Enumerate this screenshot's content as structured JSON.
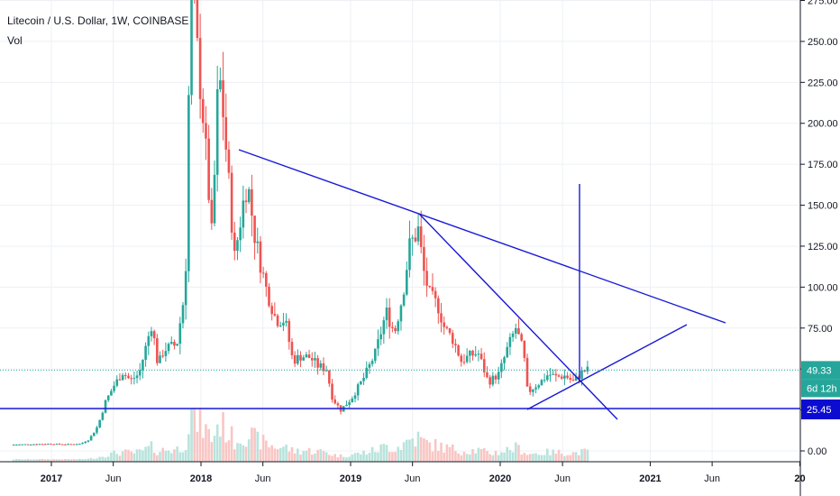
{
  "legend": {
    "symbol": "Litecoin / U.S. Dollar, 1W, COINBASE",
    "volume": "Vol"
  },
  "colors": {
    "up": "#26a69a",
    "down": "#ef5350",
    "vol_up": "#b9e3dc",
    "vol_down": "#f8c6c4",
    "trend": "#1919d6",
    "price_tag": "#26a69a",
    "support_tag": "#0c0cd0",
    "grid": "#eef0f4",
    "axis_text": "#131722"
  },
  "tags": {
    "last_price": "49.33",
    "countdown": "6d 12h",
    "support": "25.45"
  },
  "chart_data": {
    "type": "candlestick",
    "title": "Litecoin / U.S. Dollar, 1W, COINBASE",
    "x_tick_labels": [
      "2017",
      "Jun",
      "2018",
      "Jun",
      "2019",
      "Jun",
      "2020",
      "Jun",
      "2021",
      "Jun",
      "20"
    ],
    "x_ticks": [
      "2017-01",
      "2017-06",
      "2018-01",
      "2018-06",
      "2019-01",
      "2019-06",
      "2020-01",
      "2020-06",
      "2021-01",
      "2021-06",
      "2022-01"
    ],
    "y_tick_labels": [
      "0.00",
      "25.00",
      "50.00",
      "75.00",
      "100.00",
      "125.00",
      "150.00",
      "175.00",
      "200.00",
      "225.00",
      "250.00",
      "275.00"
    ],
    "ylim": [
      -5,
      280
    ],
    "last_price": 49.33,
    "support_level": 25.45,
    "anchors": [
      [
        "2016-10-01",
        3.8
      ],
      [
        "2016-12-31",
        4.3
      ],
      [
        "2017-02-15",
        4.0
      ],
      [
        "2017-03-20",
        4.3
      ],
      [
        "2017-04-10",
        7
      ],
      [
        "2017-05-01",
        15
      ],
      [
        "2017-05-20",
        30
      ],
      [
        "2017-06-10",
        40
      ],
      [
        "2017-07-01",
        48
      ],
      [
        "2017-07-20",
        43
      ],
      [
        "2017-08-10",
        47
      ],
      [
        "2017-08-31",
        68
      ],
      [
        "2017-09-10",
        78
      ],
      [
        "2017-09-25",
        52
      ],
      [
        "2017-10-10",
        62
      ],
      [
        "2017-11-10",
        65
      ],
      [
        "2017-12-01",
        100
      ],
      [
        "2017-12-12",
        260
      ],
      [
        "2017-12-18",
        290
      ],
      [
        "2017-12-31",
        240
      ],
      [
        "2018-01-15",
        200
      ],
      [
        "2018-02-05",
        125
      ],
      [
        "2018-02-15",
        210
      ],
      [
        "2018-02-25",
        225
      ],
      [
        "2018-03-10",
        185
      ],
      [
        "2018-03-31",
        118
      ],
      [
        "2018-04-20",
        150
      ],
      [
        "2018-05-01",
        165
      ],
      [
        "2018-05-20",
        130
      ],
      [
        "2018-06-15",
        100
      ],
      [
        "2018-07-10",
        80
      ],
      [
        "2018-08-01",
        80
      ],
      [
        "2018-08-20",
        55
      ],
      [
        "2018-09-10",
        58
      ],
      [
        "2018-10-01",
        57
      ],
      [
        "2018-10-20",
        52
      ],
      [
        "2018-11-10",
        50
      ],
      [
        "2018-11-25",
        32
      ],
      [
        "2018-12-15",
        25
      ],
      [
        "2019-01-10",
        32
      ],
      [
        "2019-02-10",
        45
      ],
      [
        "2019-03-10",
        60
      ],
      [
        "2019-04-05",
        85
      ],
      [
        "2019-04-25",
        72
      ],
      [
        "2019-05-15",
        95
      ],
      [
        "2019-06-01",
        125
      ],
      [
        "2019-06-22",
        135
      ],
      [
        "2019-07-05",
        110
      ],
      [
        "2019-07-20",
        95
      ],
      [
        "2019-08-10",
        88
      ],
      [
        "2019-08-25",
        75
      ],
      [
        "2019-09-15",
        68
      ],
      [
        "2019-10-05",
        55
      ],
      [
        "2019-10-25",
        58
      ],
      [
        "2019-11-15",
        60
      ],
      [
        "2019-12-10",
        42
      ],
      [
        "2020-01-05",
        47
      ],
      [
        "2020-01-25",
        62
      ],
      [
        "2020-02-15",
        75
      ],
      [
        "2020-03-05",
        60
      ],
      [
        "2020-03-15",
        35
      ],
      [
        "2020-03-25",
        38
      ],
      [
        "2020-04-15",
        42
      ],
      [
        "2020-05-05",
        47
      ],
      [
        "2020-05-25",
        45
      ],
      [
        "2020-06-15",
        46
      ],
      [
        "2020-07-05",
        42
      ],
      [
        "2020-07-25",
        48
      ],
      [
        "2020-08-05",
        49.33
      ]
    ]
  }
}
